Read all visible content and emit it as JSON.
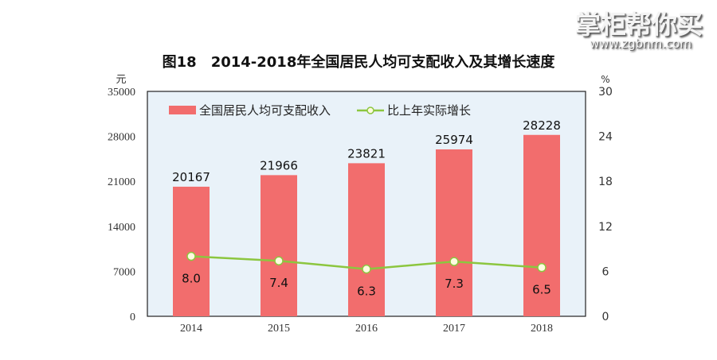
{
  "chart_data": {
    "type": "bar+line",
    "title": "图18　2014-2018年全国居民人均可支配收入及其增长速度",
    "categories": [
      "2014",
      "2015",
      "2016",
      "2017",
      "2018"
    ],
    "series": [
      {
        "name": "全国居民人均可支配收入",
        "type": "bar",
        "axis": "left",
        "values": [
          20167,
          21966,
          23821,
          25974,
          28228
        ],
        "color": "#f26d6d"
      },
      {
        "name": "比上年实际增长",
        "type": "line",
        "axis": "right",
        "values": [
          8.0,
          7.4,
          6.3,
          7.3,
          6.5
        ],
        "color": "#8cc63f"
      }
    ],
    "y_left": {
      "unit": "元",
      "range": [
        0,
        35000
      ],
      "ticks": [
        "0",
        "7000",
        "14000",
        "21000",
        "28000",
        "35000"
      ]
    },
    "y_right": {
      "unit": "%",
      "range": [
        0,
        30
      ],
      "ticks": [
        "0",
        "6",
        "12",
        "18",
        "24",
        "30"
      ]
    },
    "bar_labels": [
      "20167",
      "21966",
      "23821",
      "25974",
      "28228"
    ],
    "line_labels": [
      "8.0",
      "7.4",
      "6.3",
      "7.3",
      "6.5"
    ],
    "legend_position": "top-left",
    "plot_background": "#e9f2f9",
    "grid": false
  },
  "watermark": {
    "text": "掌柜帮你买",
    "url": "www.zgbnm.com"
  }
}
